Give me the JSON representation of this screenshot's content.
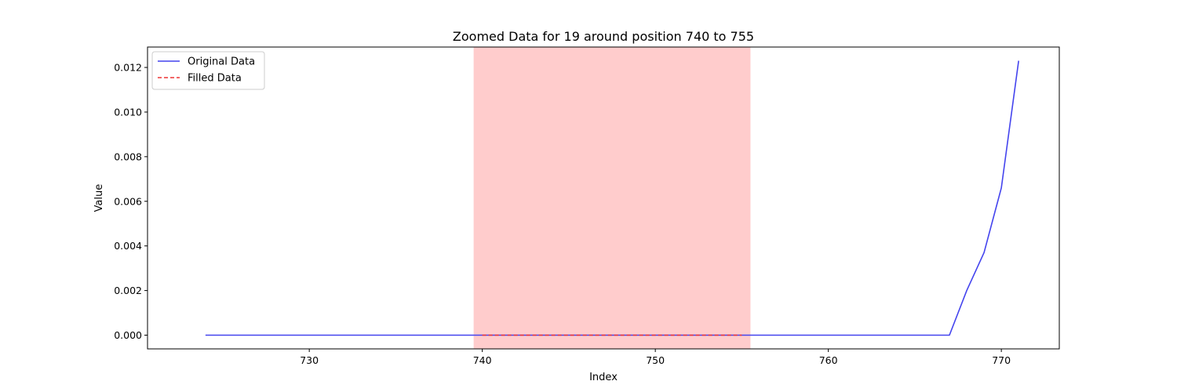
{
  "chart_data": {
    "type": "line",
    "title": "Zoomed Data for 19 around position 740 to 755",
    "xlabel": "Index",
    "ylabel": "Value",
    "xlim": [
      720.65,
      773.35
    ],
    "ylim": [
      -0.000615,
      0.012915
    ],
    "xticks": [
      730,
      740,
      750,
      760,
      770
    ],
    "xtick_labels": [
      "730",
      "740",
      "750",
      "760",
      "770"
    ],
    "yticks": [
      0.0,
      0.002,
      0.004,
      0.006,
      0.008,
      0.01,
      0.012
    ],
    "ytick_labels": [
      "0.000",
      "0.002",
      "0.004",
      "0.006",
      "0.008",
      "0.010",
      "0.012"
    ],
    "grid": false,
    "legend_position": "upper-left",
    "shaded_region": {
      "x_start": 739.5,
      "x_end": 755.5,
      "color": "#ff9999",
      "opacity": 0.5
    },
    "series": [
      {
        "name": "Original Data",
        "color": "#4444ee",
        "style": "solid",
        "x": [
          724,
          725,
          726,
          727,
          728,
          729,
          730,
          731,
          732,
          733,
          734,
          735,
          736,
          737,
          738,
          739,
          740,
          741,
          742,
          743,
          744,
          745,
          746,
          747,
          748,
          749,
          750,
          751,
          752,
          753,
          754,
          755,
          756,
          757,
          758,
          759,
          760,
          761,
          762,
          763,
          764,
          765,
          766,
          767,
          768,
          769,
          770,
          771
        ],
        "values": [
          0,
          0,
          0,
          0,
          0,
          0,
          0,
          0,
          0,
          0,
          0,
          0,
          0,
          0,
          0,
          0,
          0,
          0,
          0,
          0,
          0,
          0,
          0,
          0,
          0,
          0,
          0,
          0,
          0,
          0,
          0,
          0,
          0,
          0,
          0,
          0,
          0,
          0,
          0,
          0,
          0,
          0,
          0,
          0,
          0.002,
          0.0037,
          0.0066,
          0.0123
        ]
      },
      {
        "name": "Filled Data",
        "color": "#ee3333",
        "style": "dashed",
        "x": [
          740,
          741,
          742,
          743,
          744,
          745,
          746,
          747,
          748,
          749,
          750,
          751,
          752,
          753,
          754,
          755
        ],
        "values": [
          0,
          0,
          0,
          0,
          0,
          0,
          0,
          0,
          0,
          0,
          0,
          0,
          0,
          0,
          0,
          0
        ]
      }
    ]
  }
}
